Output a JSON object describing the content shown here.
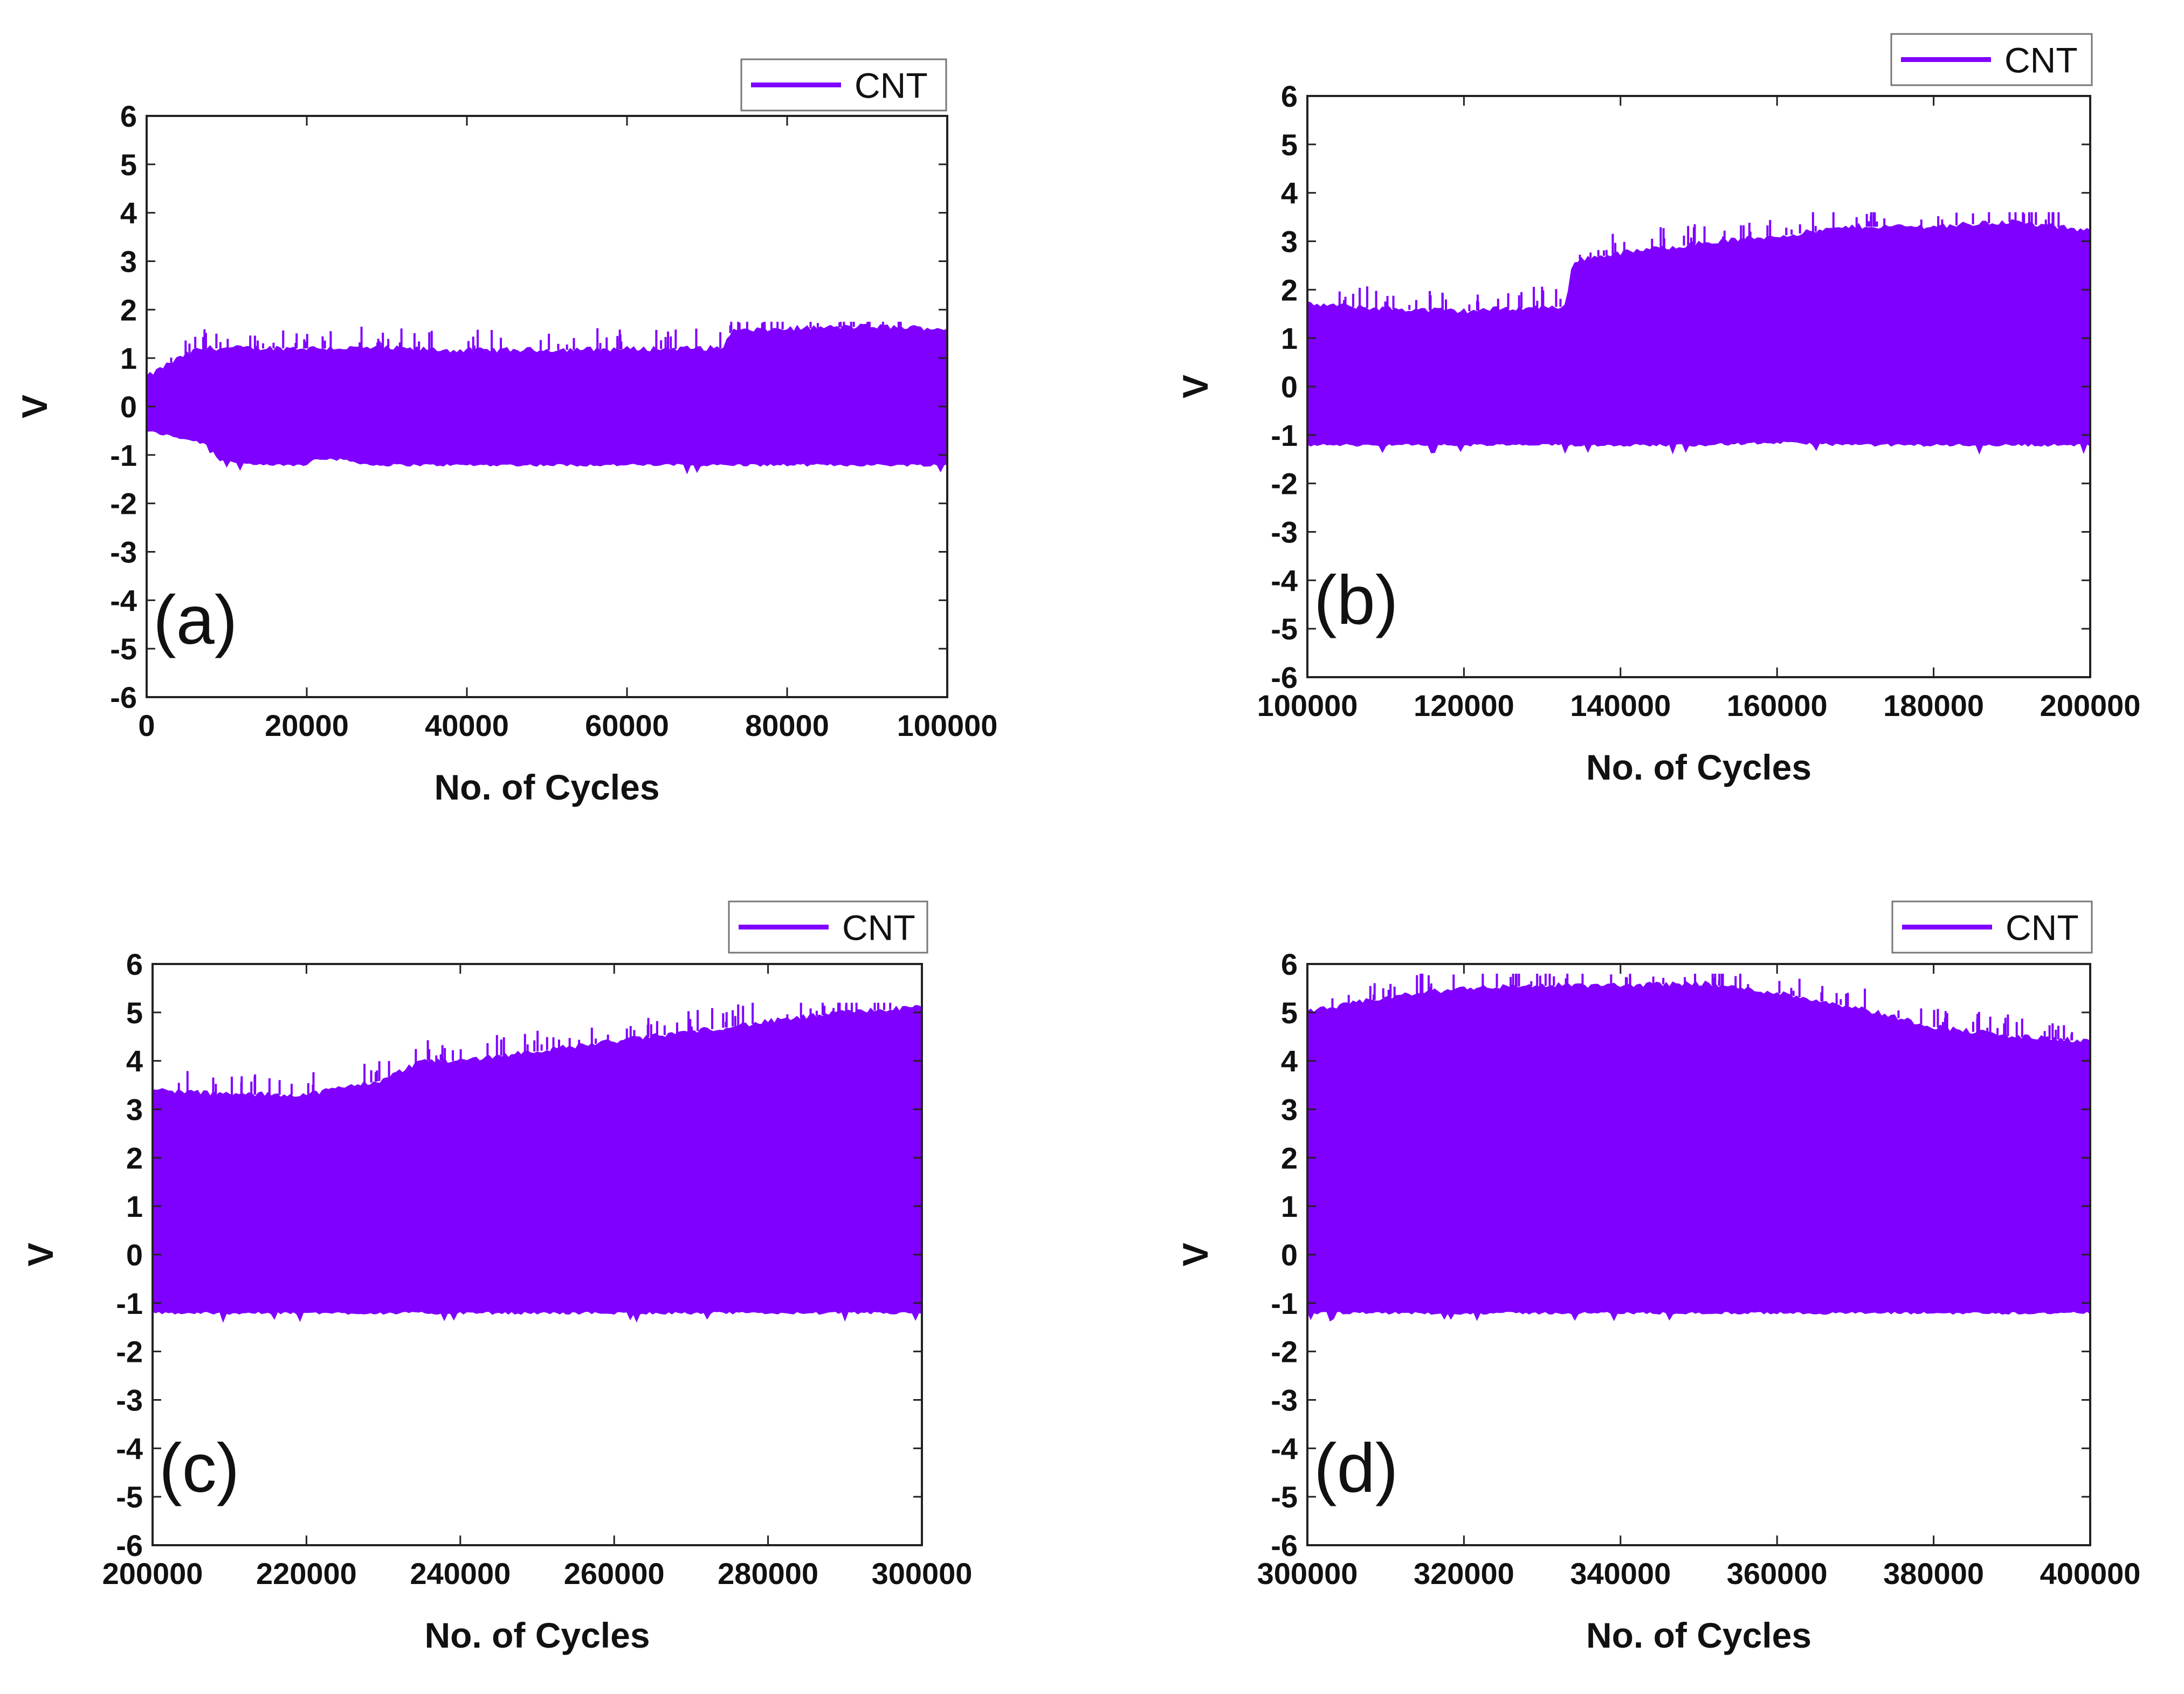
{
  "colors": {
    "series": "#7f00ff",
    "axis": "#222222",
    "background": "#ffffff"
  },
  "chart_data": [
    {
      "type": "area",
      "panel_label": "(a)",
      "xlabel": "No. of Cycles",
      "ylabel": "V",
      "xlim": [
        0,
        100000
      ],
      "ylim": [
        -6,
        6
      ],
      "xticks": [
        "0",
        "20000",
        "40000",
        "60000",
        "80000",
        "100000"
      ],
      "yticks": [
        "-6",
        "-5",
        "-4",
        "-3",
        "-2",
        "-1",
        "0",
        "1",
        "2",
        "3",
        "4",
        "5",
        "6"
      ],
      "legend": "top-right",
      "series": [
        {
          "name": "CNT",
          "x": [
            0,
            3000,
            6000,
            8000,
            9000,
            10000,
            13000,
            20000,
            21000,
            25000,
            28000,
            40000,
            60000,
            72000,
            73000,
            80000,
            90000,
            100000
          ],
          "upper": [
            0.6,
            0.9,
            1.15,
            1.2,
            1.2,
            1.2,
            1.2,
            1.2,
            1.2,
            1.2,
            1.2,
            1.15,
            1.18,
            1.2,
            1.55,
            1.6,
            1.65,
            1.6
          ],
          "lower": [
            -0.5,
            -0.6,
            -0.7,
            -0.8,
            -1.1,
            -1.1,
            -1.2,
            -1.2,
            -1.05,
            -1.1,
            -1.2,
            -1.2,
            -1.2,
            -1.2,
            -1.2,
            -1.2,
            -1.2,
            -1.2
          ],
          "spike_max": 1.75
        }
      ]
    },
    {
      "type": "area",
      "panel_label": "(b)",
      "xlabel": "No. of Cycles",
      "ylabel": "V",
      "xlim": [
        100000,
        200000
      ],
      "ylim": [
        -6,
        6
      ],
      "xticks": [
        "100000",
        "120000",
        "140000",
        "160000",
        "180000",
        "200000"
      ],
      "yticks": [
        "-6",
        "-5",
        "-4",
        "-3",
        "-2",
        "-1",
        "0",
        "1",
        "2",
        "3",
        "4",
        "5",
        "6"
      ],
      "legend": "top-right",
      "series": [
        {
          "name": "CNT",
          "x": [
            100000,
            110000,
            120000,
            125000,
            133000,
            134000,
            140000,
            150000,
            160000,
            170000,
            180000,
            190000,
            200000
          ],
          "upper": [
            1.7,
            1.6,
            1.55,
            1.6,
            1.65,
            2.6,
            2.75,
            2.95,
            3.1,
            3.3,
            3.3,
            3.4,
            3.2
          ],
          "lower": [
            -1.2,
            -1.2,
            -1.2,
            -1.2,
            -1.2,
            -1.2,
            -1.2,
            -1.2,
            -1.15,
            -1.2,
            -1.2,
            -1.2,
            -1.2
          ],
          "spike_max": 3.6
        }
      ]
    },
    {
      "type": "area",
      "panel_label": "(c)",
      "xlabel": "No. of Cycles",
      "ylabel": "V",
      "xlim": [
        200000,
        300000
      ],
      "ylim": [
        -6,
        6
      ],
      "xticks": [
        "200000",
        "220000",
        "240000",
        "260000",
        "280000",
        "300000"
      ],
      "yticks": [
        "-6",
        "-5",
        "-4",
        "-3",
        "-2",
        "-1",
        "0",
        "1",
        "2",
        "3",
        "4",
        "5",
        "6"
      ],
      "legend": "top-right",
      "series": [
        {
          "name": "CNT",
          "x": [
            200000,
            210000,
            220000,
            230000,
            235000,
            240000,
            250000,
            260000,
            270000,
            280000,
            290000,
            300000
          ],
          "upper": [
            3.4,
            3.3,
            3.3,
            3.6,
            4.0,
            4.0,
            4.2,
            4.4,
            4.6,
            4.8,
            5.0,
            5.1
          ],
          "lower": [
            -1.2,
            -1.2,
            -1.2,
            -1.2,
            -1.2,
            -1.2,
            -1.2,
            -1.2,
            -1.2,
            -1.2,
            -1.2,
            -1.2
          ],
          "spike_max": 5.2
        }
      ]
    },
    {
      "type": "area",
      "panel_label": "(d)",
      "xlabel": "No. of Cycles",
      "ylabel": "V",
      "xlim": [
        300000,
        400000
      ],
      "ylim": [
        -6,
        6
      ],
      "xticks": [
        "300000",
        "320000",
        "340000",
        "360000",
        "380000",
        "400000"
      ],
      "yticks": [
        "-6",
        "-5",
        "-4",
        "-3",
        "-2",
        "-1",
        "0",
        "1",
        "2",
        "3",
        "4",
        "5",
        "6"
      ],
      "legend": "top-right",
      "series": [
        {
          "name": "CNT",
          "x": [
            300000,
            310000,
            320000,
            330000,
            340000,
            350000,
            360000,
            370000,
            380000,
            390000,
            400000
          ],
          "upper": [
            5.0,
            5.3,
            5.5,
            5.55,
            5.55,
            5.6,
            5.4,
            5.1,
            4.7,
            4.5,
            4.4
          ],
          "lower": [
            -1.2,
            -1.2,
            -1.2,
            -1.2,
            -1.2,
            -1.2,
            -1.2,
            -1.2,
            -1.2,
            -1.2,
            -1.2
          ],
          "spike_max": 5.8
        }
      ]
    }
  ]
}
